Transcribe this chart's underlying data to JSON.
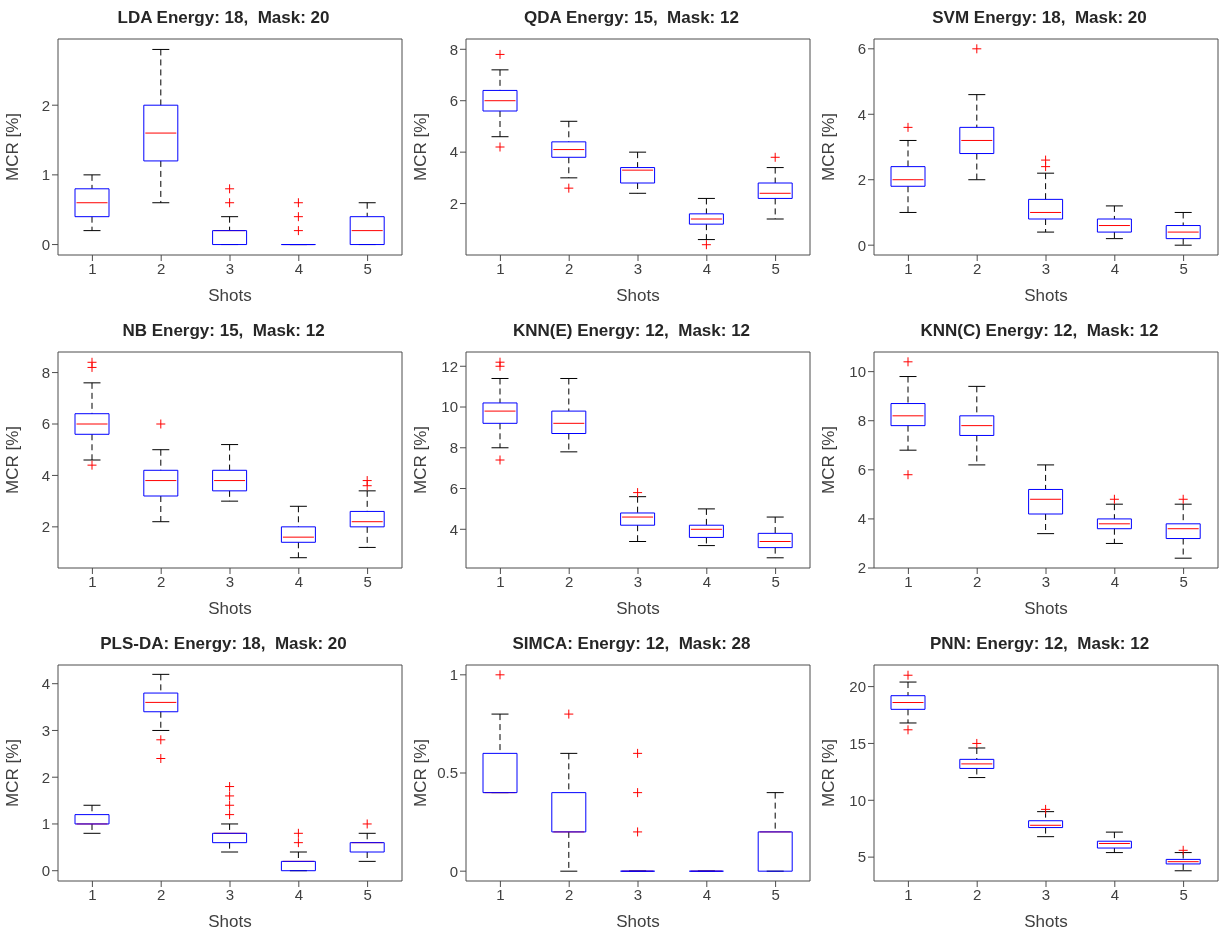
{
  "chart_data": [
    {
      "type": "box",
      "title": "LDA Energy: 18,  Mask: 20",
      "xlabel": "Shots",
      "ylabel": "MCR [%]",
      "categories": [
        "1",
        "2",
        "3",
        "4",
        "5"
      ],
      "color": "#0000ff",
      "marker": "cross",
      "ylim": [
        -0.15,
        2.95
      ],
      "yticks": [
        0,
        1,
        2
      ],
      "boxes": [
        {
          "low": 0.2,
          "q1": 0.4,
          "median": 0.6,
          "q3": 0.8,
          "high": 1.0
        },
        {
          "low": 0.6,
          "q1": 1.2,
          "median": 1.6,
          "q3": 2.0,
          "high": 2.8
        },
        {
          "low": 0,
          "q1": 0,
          "median": 0.2,
          "q3": 0.2,
          "high": 0.4,
          "outliers": [
            0.6,
            0.8
          ]
        },
        {
          "low": 0,
          "q1": 0,
          "median": 0,
          "q3": 0,
          "high": 0,
          "outliers": [
            0.2,
            0.4,
            0.6
          ]
        },
        {
          "low": 0,
          "q1": 0,
          "median": 0.2,
          "q3": 0.4,
          "high": 0.6
        }
      ]
    },
    {
      "type": "box",
      "title": "QDA Energy: 15,  Mask: 12",
      "xlabel": "Shots",
      "ylabel": "MCR [%]",
      "categories": [
        "1",
        "2",
        "3",
        "4",
        "5"
      ],
      "color": "#0000ff",
      "marker": "cross",
      "ylim": [
        0,
        8.4
      ],
      "yticks": [
        2,
        4,
        6,
        8
      ],
      "boxes": [
        {
          "low": 4.6,
          "q1": 5.6,
          "median": 6.0,
          "q3": 6.4,
          "high": 7.2,
          "outliers": [
            4.2,
            7.8
          ]
        },
        {
          "low": 3.0,
          "q1": 3.8,
          "median": 4.1,
          "q3": 4.4,
          "high": 5.2,
          "outliers": [
            2.6
          ]
        },
        {
          "low": 2.4,
          "q1": 2.8,
          "median": 3.3,
          "q3": 3.4,
          "high": 4.0
        },
        {
          "low": 0.6,
          "q1": 1.2,
          "median": 1.4,
          "q3": 1.6,
          "high": 2.2,
          "outliers": [
            0.4
          ]
        },
        {
          "low": 1.4,
          "q1": 2.2,
          "median": 2.4,
          "q3": 2.8,
          "high": 3.4,
          "outliers": [
            3.8
          ]
        }
      ]
    },
    {
      "type": "box",
      "title": "SVM Energy: 18,  Mask: 20",
      "xlabel": "Shots",
      "ylabel": "MCR [%]",
      "categories": [
        "1",
        "2",
        "3",
        "4",
        "5"
      ],
      "color": "#0000ff",
      "marker": "cross",
      "ylim": [
        -0.3,
        6.3
      ],
      "yticks": [
        0,
        2,
        4,
        6
      ],
      "boxes": [
        {
          "low": 1.0,
          "q1": 1.8,
          "median": 2.0,
          "q3": 2.4,
          "high": 3.2,
          "outliers": [
            3.6
          ]
        },
        {
          "low": 2.0,
          "q1": 2.8,
          "median": 3.2,
          "q3": 3.6,
          "high": 4.6,
          "outliers": [
            6.0
          ]
        },
        {
          "low": 0.4,
          "q1": 0.8,
          "median": 1.0,
          "q3": 1.4,
          "high": 2.2,
          "outliers": [
            2.4,
            2.6
          ]
        },
        {
          "low": 0.2,
          "q1": 0.4,
          "median": 0.6,
          "q3": 0.8,
          "high": 1.2
        },
        {
          "low": 0,
          "q1": 0.2,
          "median": 0.4,
          "q3": 0.6,
          "high": 1.0
        }
      ]
    },
    {
      "type": "box",
      "title": "NB Energy: 15,  Mask: 12",
      "xlabel": "Shots",
      "ylabel": "MCR [%]",
      "categories": [
        "1",
        "2",
        "3",
        "4",
        "5"
      ],
      "color": "#0000ff",
      "marker": "cross",
      "ylim": [
        0.4,
        8.8
      ],
      "yticks": [
        2,
        4,
        6,
        8
      ],
      "boxes": [
        {
          "low": 4.6,
          "q1": 5.6,
          "median": 6.0,
          "q3": 6.4,
          "high": 7.6,
          "outliers": [
            4.4,
            8.2,
            8.4
          ]
        },
        {
          "low": 2.2,
          "q1": 3.2,
          "median": 3.8,
          "q3": 4.2,
          "high": 5.0,
          "outliers": [
            6.0
          ]
        },
        {
          "low": 3.0,
          "q1": 3.4,
          "median": 3.8,
          "q3": 4.2,
          "high": 5.2
        },
        {
          "low": 0.8,
          "q1": 1.4,
          "median": 1.6,
          "q3": 2.0,
          "high": 2.8
        },
        {
          "low": 1.2,
          "q1": 2.0,
          "median": 2.2,
          "q3": 2.6,
          "high": 3.4,
          "outliers": [
            3.6,
            3.8
          ]
        }
      ]
    },
    {
      "type": "box",
      "title": "KNN(E) Energy: 12,  Mask: 12",
      "xlabel": "Shots",
      "ylabel": "MCR [%]",
      "categories": [
        "1",
        "2",
        "3",
        "4",
        "5"
      ],
      "color": "#0000ff",
      "marker": "cross",
      "ylim": [
        2.1,
        12.7
      ],
      "yticks": [
        4,
        6,
        8,
        10,
        12
      ],
      "boxes": [
        {
          "low": 8.0,
          "q1": 9.2,
          "median": 9.8,
          "q3": 10.2,
          "high": 11.4,
          "outliers": [
            7.4,
            12.0,
            12.2
          ]
        },
        {
          "low": 7.8,
          "q1": 8.7,
          "median": 9.2,
          "q3": 9.8,
          "high": 11.4
        },
        {
          "low": 3.4,
          "q1": 4.2,
          "median": 4.6,
          "q3": 4.8,
          "high": 5.6,
          "outliers": [
            5.8
          ]
        },
        {
          "low": 3.2,
          "q1": 3.6,
          "median": 4.0,
          "q3": 4.2,
          "high": 5.0
        },
        {
          "low": 2.6,
          "q1": 3.1,
          "median": 3.4,
          "q3": 3.8,
          "high": 4.6
        }
      ]
    },
    {
      "type": "box",
      "title": "KNN(C) Energy: 12,  Mask: 12",
      "xlabel": "Shots",
      "ylabel": "MCR [%]",
      "categories": [
        "1",
        "2",
        "3",
        "4",
        "5"
      ],
      "color": "#0000ff",
      "marker": "cross",
      "ylim": [
        2,
        10.8
      ],
      "yticks": [
        2,
        4,
        6,
        8,
        10
      ],
      "boxes": [
        {
          "low": 6.8,
          "q1": 7.8,
          "median": 8.2,
          "q3": 8.7,
          "high": 9.8,
          "outliers": [
            5.8,
            10.4
          ]
        },
        {
          "low": 6.2,
          "q1": 7.4,
          "median": 7.8,
          "q3": 8.2,
          "high": 9.4
        },
        {
          "low": 3.4,
          "q1": 4.2,
          "median": 4.8,
          "q3": 5.2,
          "high": 6.2
        },
        {
          "low": 3.0,
          "q1": 3.6,
          "median": 3.8,
          "q3": 4.0,
          "high": 4.6,
          "outliers": [
            4.8
          ]
        },
        {
          "low": 2.4,
          "q1": 3.2,
          "median": 3.6,
          "q3": 3.8,
          "high": 4.6,
          "outliers": [
            4.8
          ]
        }
      ]
    },
    {
      "type": "box",
      "title": "PLS-DA: Energy: 18,  Mask: 20",
      "xlabel": "Shots",
      "ylabel": "MCR [%]",
      "categories": [
        "1",
        "2",
        "3",
        "4",
        "5"
      ],
      "color": "#0000ff",
      "marker": "cross",
      "ylim": [
        -0.22,
        4.4
      ],
      "yticks": [
        0,
        1,
        2,
        3,
        4
      ],
      "boxes": [
        {
          "low": 0.8,
          "q1": 1.0,
          "median": 1.0,
          "q3": 1.2,
          "high": 1.4
        },
        {
          "low": 3.0,
          "q1": 3.4,
          "median": 3.6,
          "q3": 3.8,
          "high": 4.2,
          "outliers": [
            2.4,
            2.8
          ]
        },
        {
          "low": 0.4,
          "q1": 0.6,
          "median": 0.8,
          "q3": 0.8,
          "high": 1.0,
          "outliers": [
            1.2,
            1.4,
            1.6,
            1.8
          ]
        },
        {
          "low": 0,
          "q1": 0,
          "median": 0.2,
          "q3": 0.2,
          "high": 0.4,
          "outliers": [
            0.6,
            0.8
          ]
        },
        {
          "low": 0.2,
          "q1": 0.4,
          "median": 0.6,
          "q3": 0.6,
          "high": 0.8,
          "outliers": [
            1.0
          ]
        }
      ]
    },
    {
      "type": "box",
      "title": "SIMCA: Energy: 12,  Mask: 28",
      "xlabel": "Shots",
      "ylabel": "MCR [%]",
      "categories": [
        "1",
        "2",
        "3",
        "4",
        "5"
      ],
      "color": "#0000ff",
      "marker": "cross",
      "ylim": [
        -0.05,
        1.05
      ],
      "yticks": [
        0,
        0.5,
        1
      ],
      "boxes": [
        {
          "low": 0.4,
          "q1": 0.4,
          "median": 0.4,
          "q3": 0.6,
          "high": 0.8,
          "outliers": [
            1.0
          ]
        },
        {
          "low": 0,
          "q1": 0.2,
          "median": 0.2,
          "q3": 0.4,
          "high": 0.6,
          "outliers": [
            0.8
          ]
        },
        {
          "low": 0,
          "q1": 0,
          "median": 0,
          "q3": 0,
          "high": 0,
          "outliers": [
            0.2,
            0.4,
            0.6
          ]
        },
        {
          "low": 0,
          "q1": 0,
          "median": 0,
          "q3": 0,
          "high": 0
        },
        {
          "low": 0,
          "q1": 0,
          "median": 0.2,
          "q3": 0.2,
          "high": 0.4
        }
      ]
    },
    {
      "type": "box",
      "title": "PNN: Energy: 12,  Mask: 12",
      "xlabel": "Shots",
      "ylabel": "MCR [%]",
      "categories": [
        "1",
        "2",
        "3",
        "4",
        "5"
      ],
      "color": "#0000ff",
      "marker": "cross",
      "ylim": [
        2.9,
        21.9
      ],
      "yticks": [
        5,
        10,
        15,
        20
      ],
      "boxes": [
        {
          "low": 16.8,
          "q1": 18.0,
          "median": 18.6,
          "q3": 19.2,
          "high": 20.4,
          "outliers": [
            16.2,
            21.0
          ]
        },
        {
          "low": 12.0,
          "q1": 12.8,
          "median": 13.2,
          "q3": 13.6,
          "high": 14.6,
          "outliers": [
            15.0
          ]
        },
        {
          "low": 6.8,
          "q1": 7.6,
          "median": 7.8,
          "q3": 8.2,
          "high": 9.0,
          "outliers": [
            9.2
          ]
        },
        {
          "low": 5.4,
          "q1": 5.8,
          "median": 6.2,
          "q3": 6.4,
          "high": 7.2
        },
        {
          "low": 3.8,
          "q1": 4.4,
          "median": 4.6,
          "q3": 4.8,
          "high": 5.4,
          "outliers": [
            5.6
          ]
        }
      ]
    }
  ]
}
